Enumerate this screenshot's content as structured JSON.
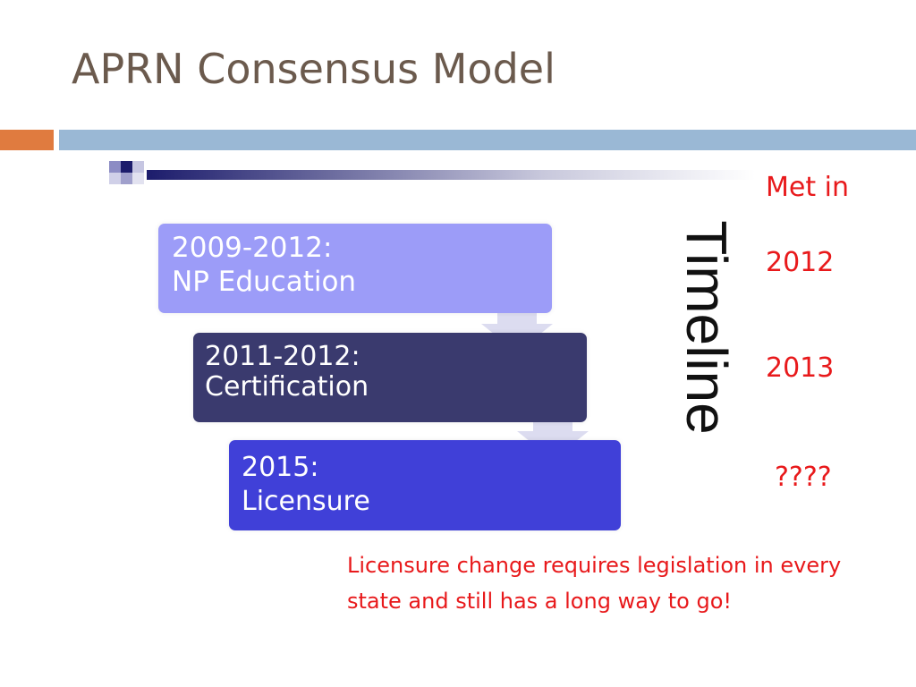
{
  "slide": {
    "title": "APRN Consensus Model"
  },
  "diagram": {
    "steps": [
      {
        "line1": "2009-2012:",
        "line2": "NP Education",
        "color": "#9c9cf8"
      },
      {
        "line1": "2011-2012:",
        "line2": "Certification",
        "color": "#3a3a6e"
      },
      {
        "line1": "2015:",
        "line2": "Licensure",
        "color": "#4040d8"
      }
    ],
    "timeline_label": "Timeline"
  },
  "status": {
    "header": "Met in",
    "values": [
      "2012",
      "2013",
      "????"
    ]
  },
  "note": {
    "line1": "Licensure change requires legislation in every",
    "line2": "state and still has a long way to go!"
  },
  "colors": {
    "title": "#6b5a4d",
    "accent_orange": "#e07b3f",
    "accent_blue": "#9ab8d5",
    "red_text": "#e8191b",
    "arrow": "#dcdcf0"
  }
}
